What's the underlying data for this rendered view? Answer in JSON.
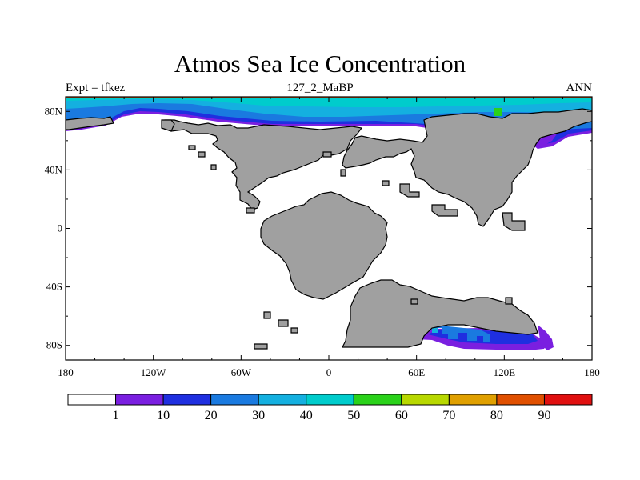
{
  "title": "Atmos Sea Ice Concentration",
  "subtitle_left": "Expt = tfkez",
  "subtitle_center": "127_2_MaBP",
  "subtitle_right": "ANN",
  "map": {
    "lon_range": [
      -180,
      180
    ],
    "lat_range": [
      -90,
      90
    ],
    "lon_ticks": [
      "180",
      "120W",
      "60W",
      "0",
      "60E",
      "120E",
      "180"
    ],
    "lat_ticks": [
      "80N",
      "40N",
      "0",
      "40S",
      "80S"
    ],
    "land_color": "#a0a0a0",
    "ocean_color": "#ffffff"
  },
  "colorbar": {
    "labels": [
      "1",
      "10",
      "20",
      "30",
      "40",
      "50",
      "60",
      "70",
      "80",
      "90"
    ],
    "colors": [
      "#ffffff",
      "#7a1fe0",
      "#1f2fe0",
      "#1a7ae0",
      "#14b0e0",
      "#00cccc",
      "#2ad21a",
      "#b8d800",
      "#e0a000",
      "#e05000",
      "#e01010"
    ]
  }
}
